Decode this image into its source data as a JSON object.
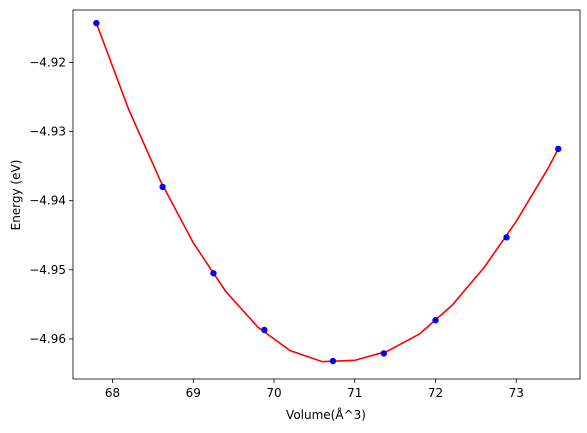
{
  "chart_data": {
    "type": "scatter",
    "title": "",
    "xlabel": "Volume(Å^3)",
    "ylabel": "Energy (eV)",
    "xlim": [
      67.51,
      73.79
    ],
    "ylim": [
      -4.9658,
      -4.9124
    ],
    "xticks": [
      68,
      69,
      70,
      71,
      72,
      73
    ],
    "yticks": [
      -4.92,
      -4.93,
      -4.94,
      -4.95,
      -4.96
    ],
    "xtick_labels": [
      "68",
      "69",
      "70",
      "71",
      "72",
      "73"
    ],
    "ytick_labels": [
      "−4.92",
      "−4.93",
      "−4.94",
      "−4.95",
      "−4.96"
    ],
    "grid": false,
    "legend": "none",
    "series": [
      {
        "kind": "points",
        "color": "#0000ff",
        "x": [
          67.8,
          68.62,
          69.25,
          69.88,
          70.73,
          71.36,
          72.0,
          72.88,
          73.52
        ],
        "y": [
          -4.9143,
          -4.938,
          -4.9505,
          -4.9587,
          -4.9632,
          -4.9621,
          -4.9573,
          -4.9453,
          -4.9325
        ]
      },
      {
        "kind": "fit-curve",
        "color": "#ff0000",
        "x": [
          67.8,
          68.2,
          68.6,
          69.0,
          69.4,
          69.8,
          70.2,
          70.6,
          71.0,
          71.4,
          71.8,
          72.2,
          72.6,
          73.0,
          73.4,
          73.52
        ],
        "y": [
          -4.9143,
          -4.9268,
          -4.9373,
          -4.9461,
          -4.9531,
          -4.9583,
          -4.9617,
          -4.9633,
          -4.9631,
          -4.9618,
          -4.9593,
          -4.9552,
          -4.9497,
          -4.943,
          -4.9352,
          -4.9325
        ]
      }
    ]
  }
}
